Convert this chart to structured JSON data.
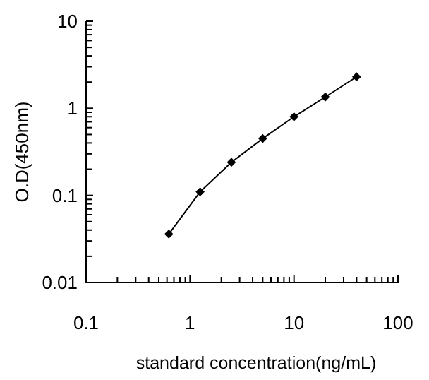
{
  "chart_data": {
    "type": "line",
    "xlabel": "standard concentration(ng/mL)",
    "ylabel": "O.D(450nm)",
    "log": "xy",
    "marker": "diamond",
    "line_style": "solid",
    "x": [
      0.625,
      1.25,
      2.5,
      5,
      10,
      20,
      40
    ],
    "series": [
      {
        "color": "#000000",
        "values": [
          0.036,
          0.11,
          0.24,
          0.45,
          0.8,
          1.35,
          2.3
        ]
      }
    ],
    "xlim": [
      0.1,
      100
    ],
    "ylim": [
      0.01,
      10
    ],
    "xticks": [
      0.1,
      {
        "value": 0.2,
        "label": null
      },
      {
        "value": 0.3,
        "label": null
      },
      {
        "value": 0.4,
        "label": null
      },
      {
        "value": 0.5,
        "label": null
      },
      {
        "value": 0.6,
        "label": null
      },
      {
        "value": 0.7,
        "label": null
      },
      {
        "value": 0.8,
        "label": null
      },
      {
        "value": 0.9,
        "label": null
      },
      1,
      {
        "value": 2,
        "label": null
      },
      {
        "value": 3,
        "label": null
      },
      {
        "value": 4,
        "label": null
      },
      {
        "value": 5,
        "label": null
      },
      {
        "value": 6,
        "label": null
      },
      {
        "value": 7,
        "label": null
      },
      {
        "value": 8,
        "label": null
      },
      {
        "value": 9,
        "label": null
      },
      10,
      {
        "value": 20,
        "label": null
      },
      {
        "value": 30,
        "label": null
      },
      {
        "value": 40,
        "label": null
      },
      {
        "value": 50,
        "label": null
      },
      {
        "value": 60,
        "label": null
      },
      {
        "value": 70,
        "label": null
      },
      {
        "value": 80,
        "label": null
      },
      {
        "value": 90,
        "label": null
      },
      100
    ],
    "yticks": [
      0.01,
      {
        "value": 0.02,
        "label": null
      },
      {
        "value": 0.03,
        "label": null
      },
      {
        "value": 0.04,
        "label": null
      },
      {
        "value": 0.05,
        "label": null
      },
      {
        "value": 0.06,
        "label": null
      },
      {
        "value": 0.07,
        "label": null
      },
      {
        "value": 0.08,
        "label": null
      },
      {
        "value": 0.09,
        "label": null
      },
      0.1,
      {
        "value": 0.2,
        "label": null
      },
      {
        "value": 0.3,
        "label": null
      },
      {
        "value": 0.4,
        "label": null
      },
      {
        "value": 0.5,
        "label": null
      },
      {
        "value": 0.6,
        "label": null
      },
      {
        "value": 0.7,
        "label": null
      },
      {
        "value": 0.8,
        "label": null
      },
      {
        "value": 0.9,
        "label": null
      },
      1,
      {
        "value": 2,
        "label": null
      },
      {
        "value": 3,
        "label": null
      },
      {
        "value": 4,
        "label": null
      },
      {
        "value": 5,
        "label": null
      },
      {
        "value": 6,
        "label": null
      },
      {
        "value": 7,
        "label": null
      },
      {
        "value": 8,
        "label": null
      },
      {
        "value": 9,
        "label": null
      },
      10
    ]
  }
}
